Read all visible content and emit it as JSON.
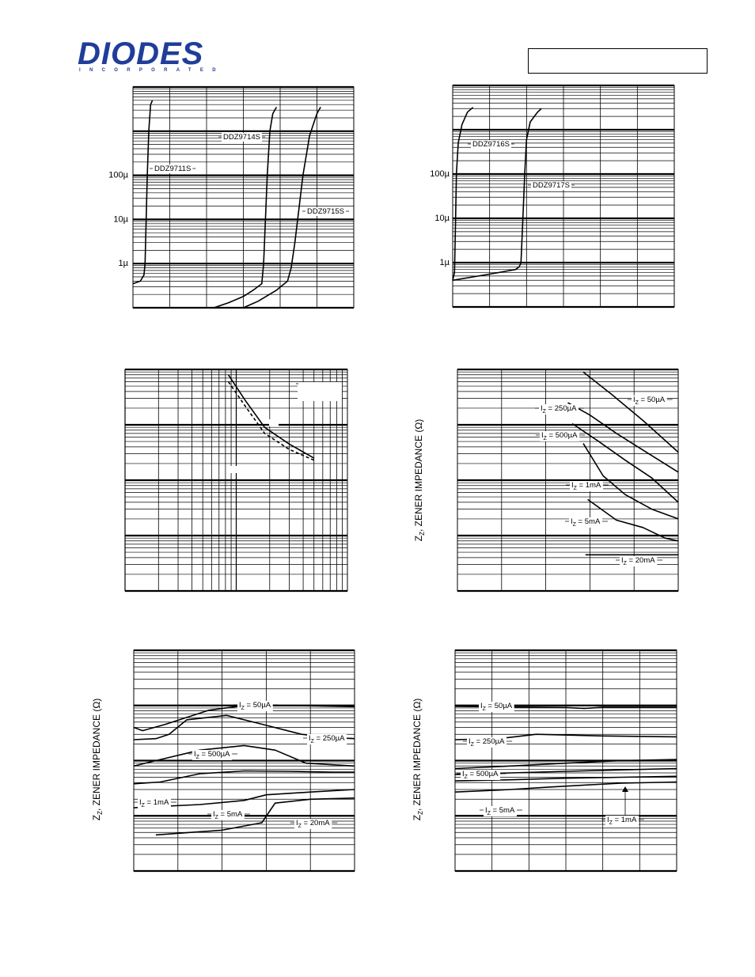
{
  "header": {
    "logo_text": "DIODES",
    "logo_subtext": "INCORPORATED",
    "brand_color": "#1f3d99",
    "part_number_box": ""
  },
  "chart_data": [
    {
      "id": "c1",
      "type": "line",
      "x_scale": "linear",
      "y_scale": "log",
      "xlim": [
        0,
        6
      ],
      "ylim": [
        1e-07,
        0.01
      ],
      "yticks": [
        {
          "value": 0.0001,
          "label": "100µ"
        },
        {
          "value": 1e-05,
          "label": "10µ"
        },
        {
          "value": 1e-06,
          "label": "1µ"
        }
      ],
      "series": [
        {
          "name": "DDZ9711S",
          "points": [
            [
              0.0,
              3.5e-07
            ],
            [
              0.2,
              4e-07
            ],
            [
              0.3,
              5.5e-07
            ],
            [
              0.33,
              1e-06
            ],
            [
              0.36,
              1e-05
            ],
            [
              0.39,
              0.0001
            ],
            [
              0.43,
              0.001
            ],
            [
              0.48,
              0.004
            ],
            [
              0.53,
              0.005
            ]
          ]
        },
        {
          "name": "DDZ9714S",
          "points": [
            [
              2.2,
              1e-07
            ],
            [
              2.6,
              1.3e-07
            ],
            [
              3.0,
              1.8e-07
            ],
            [
              3.3,
              2.6e-07
            ],
            [
              3.5,
              3.5e-07
            ],
            [
              3.55,
              1e-06
            ],
            [
              3.6,
              1e-05
            ],
            [
              3.65,
              0.0001
            ],
            [
              3.72,
              0.001
            ],
            [
              3.8,
              0.0025
            ],
            [
              3.9,
              0.0035
            ]
          ]
        },
        {
          "name": "DDZ9715S",
          "points": [
            [
              3.0,
              1e-07
            ],
            [
              3.4,
              1.4e-07
            ],
            [
              3.9,
              2.5e-07
            ],
            [
              4.2,
              4e-07
            ],
            [
              4.3,
              8e-07
            ],
            [
              4.4,
              3e-06
            ],
            [
              4.5,
              1.5e-05
            ],
            [
              4.62,
              0.0001
            ],
            [
              4.8,
              0.0008
            ],
            [
              5.0,
              0.0025
            ],
            [
              5.1,
              0.0035
            ]
          ]
        }
      ]
    },
    {
      "id": "c2",
      "type": "line",
      "x_scale": "linear",
      "y_scale": "log",
      "xlim": [
        0,
        6
      ],
      "ylim": [
        1e-07,
        0.01
      ],
      "yticks": [
        {
          "value": 0.0001,
          "label": "100µ"
        },
        {
          "value": 1e-05,
          "label": "10µ"
        },
        {
          "value": 1e-06,
          "label": "1µ"
        }
      ],
      "series": [
        {
          "name": "DDZ9716S",
          "points": [
            [
              0.0,
              4e-07
            ],
            [
              0.05,
              6e-07
            ],
            [
              0.08,
              1e-05
            ],
            [
              0.1,
              0.0001
            ],
            [
              0.15,
              0.0005
            ],
            [
              0.25,
              0.0013
            ],
            [
              0.4,
              0.0025
            ],
            [
              0.55,
              0.0032
            ]
          ]
        },
        {
          "name": "DDZ9717S",
          "points": [
            [
              0.0,
              4e-07
            ],
            [
              1.0,
              5.5e-07
            ],
            [
              1.7,
              7e-07
            ],
            [
              1.8,
              8e-07
            ],
            [
              1.85,
              1e-06
            ],
            [
              1.9,
              1e-05
            ],
            [
              1.95,
              0.0001
            ],
            [
              2.0,
              0.0006
            ],
            [
              2.1,
              0.0015
            ],
            [
              2.3,
              0.0025
            ],
            [
              2.4,
              0.003
            ]
          ]
        }
      ]
    },
    {
      "id": "c3",
      "type": "line",
      "x_scale": "log",
      "y_scale": "log",
      "xlim": [
        1,
        100
      ],
      "ylim": [
        1,
        10000
      ],
      "series": [
        {
          "name": "",
          "style": "solid",
          "points": [
            [
              8.5,
              8000
            ],
            [
              12,
              2800
            ],
            [
              18,
              900
            ],
            [
              30,
              450
            ],
            [
              50,
              250
            ]
          ]
        },
        {
          "name": "",
          "style": "dashed",
          "points": [
            [
              8.5,
              6000
            ],
            [
              12,
              2200
            ],
            [
              18,
              700
            ],
            [
              30,
              360
            ],
            [
              50,
              230
            ]
          ]
        }
      ]
    },
    {
      "id": "c4",
      "type": "line",
      "x_scale": "linear",
      "y_scale": "log",
      "xlim": [
        0,
        5
      ],
      "ylim": [
        1,
        10000
      ],
      "ylabel": "Z, ZENER IMPEDANCE (Ω)",
      "ylabel_z": "Z",
      "ylabel_sub": "Z",
      "ylabel_rest": ", ZENER IMPEDANCE (Ω)",
      "series": [
        {
          "name": "IZ = 50µA",
          "label_main": "I",
          "label_sub": "Z",
          "label_rest": " = 50µA",
          "points": [
            [
              2.85,
              9000
            ],
            [
              3.5,
              3500
            ],
            [
              4.2,
              1200
            ],
            [
              5.0,
              320
            ]
          ]
        },
        {
          "name": "IZ = 250µA",
          "label_main": "I",
          "label_sub": "Z",
          "label_rest": " = 250µA",
          "points": [
            [
              2.5,
              2500
            ],
            [
              3.0,
              1500
            ],
            [
              3.6,
              700
            ],
            [
              4.2,
              350
            ],
            [
              5.0,
              140
            ]
          ]
        },
        {
          "name": "IZ = 500µA",
          "label_main": "I",
          "label_sub": "Z",
          "label_rest": " = 500µA",
          "points": [
            [
              2.6,
              1050
            ],
            [
              3.2,
              500
            ],
            [
              3.8,
              230
            ],
            [
              4.4,
              110
            ],
            [
              5.0,
              40
            ]
          ]
        },
        {
          "name": "IZ = 1mA",
          "label_main": "I",
          "label_sub": "Z",
          "label_rest": " = 1mA",
          "points": [
            [
              2.85,
              460
            ],
            [
              3.3,
              120
            ],
            [
              3.8,
              55
            ],
            [
              4.4,
              30
            ],
            [
              5.0,
              20
            ]
          ]
        },
        {
          "name": "IZ = 5mA",
          "label_main": "I",
          "label_sub": "Z",
          "label_rest": " = 5mA",
          "points": [
            [
              2.95,
              45
            ],
            [
              3.6,
              19
            ],
            [
              4.2,
              14
            ],
            [
              4.7,
              9
            ],
            [
              5.0,
              8
            ]
          ]
        },
        {
          "name": "IZ = 20mA",
          "label_main": "I",
          "label_sub": "Z",
          "label_rest": " = 20mA",
          "points": [
            [
              2.9,
              4.5
            ],
            [
              5.0,
              4.5
            ]
          ]
        }
      ]
    },
    {
      "id": "c5",
      "type": "line",
      "x_scale": "linear",
      "y_scale": "log",
      "xlim": [
        0,
        5
      ],
      "ylim": [
        10,
        100000
      ],
      "ylabel": "Z, ZENER IMPEDANCE (Ω)",
      "ylabel_z": "Z",
      "ylabel_sub": "Z",
      "ylabel_rest": ", ZENER IMPEDANCE (Ω)",
      "series": [
        {
          "name": "IZ = 50µA",
          "label_main": "I",
          "label_sub": "Z",
          "label_rest": " = 50µA",
          "points": [
            [
              0.0,
              4000
            ],
            [
              0.2,
              3500
            ],
            [
              0.7,
              4500
            ],
            [
              1.7,
              8200
            ],
            [
              2.5,
              10000
            ],
            [
              3.5,
              10000
            ],
            [
              5.0,
              9500
            ]
          ]
        },
        {
          "name": "IZ = 250µA",
          "label_main": "I",
          "label_sub": "Z",
          "label_rest": " = 250µA",
          "points": [
            [
              0.0,
              2400
            ],
            [
              0.5,
              2500
            ],
            [
              0.8,
              3000
            ],
            [
              1.2,
              5500
            ],
            [
              2.1,
              6600
            ],
            [
              2.8,
              4800
            ],
            [
              3.8,
              3000
            ],
            [
              4.5,
              2600
            ],
            [
              5.0,
              2500
            ]
          ]
        },
        {
          "name": "IZ = 500µA",
          "label_main": "I",
          "label_sub": "Z",
          "label_rest": " = 500µA",
          "points": [
            [
              0.0,
              800
            ],
            [
              0.5,
              1000
            ],
            [
              1.5,
              1550
            ],
            [
              2.5,
              1880
            ],
            [
              3.2,
              1550
            ],
            [
              3.9,
              900
            ],
            [
              5.0,
              800
            ]
          ]
        },
        {
          "name": "IZ = 1mA",
          "label_main": "I",
          "label_sub": "Z",
          "label_rest": " = 1mA",
          "points": [
            [
              0.0,
              380
            ],
            [
              0.6,
              410
            ],
            [
              1.5,
              580
            ],
            [
              2.5,
              650
            ],
            [
              3.5,
              640
            ],
            [
              4.5,
              620
            ],
            [
              5.0,
              620
            ]
          ]
        },
        {
          "name": "IZ = 5mA",
          "label_main": "I",
          "label_sub": "Z",
          "label_rest": " = 5mA",
          "points": [
            [
              0.0,
              140
            ],
            [
              1.5,
              160
            ],
            [
              2.5,
              190
            ],
            [
              3.0,
              240
            ],
            [
              4.0,
              270
            ],
            [
              5.0,
              300
            ]
          ]
        },
        {
          "name": "IZ = 20mA",
          "label_main": "I",
          "label_sub": "Z",
          "label_rest": " = 20mA",
          "points": [
            [
              0.5,
              45
            ],
            [
              2.0,
              55
            ],
            [
              2.9,
              75
            ],
            [
              3.2,
              170
            ],
            [
              4.0,
              200
            ],
            [
              5.0,
              210
            ]
          ]
        }
      ]
    },
    {
      "id": "c6",
      "type": "line",
      "x_scale": "linear",
      "y_scale": "log",
      "xlim": [
        0,
        6
      ],
      "ylim": [
        10,
        100000
      ],
      "ylabel": "Z, ZENER IMPEDANCE (Ω)",
      "ylabel_z": "Z",
      "ylabel_sub": "Z",
      "ylabel_rest": ", ZENER IMPEDANCE (Ω)",
      "series": [
        {
          "name": "IZ = 50µA",
          "label_main": "I",
          "label_sub": "Z",
          "label_rest": " = 50µA",
          "points": [
            [
              0.0,
              9600
            ],
            [
              3.0,
              9200
            ],
            [
              3.5,
              8800
            ],
            [
              4.0,
              9300
            ],
            [
              6.0,
              9300
            ]
          ]
        },
        {
          "name": "IZ = 250µA",
          "label_main": "I",
          "label_sub": "Z",
          "label_rest": " = 250µA",
          "points": [
            [
              0.0,
              2400
            ],
            [
              1.2,
              2500
            ],
            [
              2.2,
              3000
            ],
            [
              4.0,
              2800
            ],
            [
              6.0,
              2700
            ]
          ]
        },
        {
          "name": "IZ = 500µA",
          "label_main": "I",
          "label_sub": "Z",
          "label_rest": " = 500µA",
          "points": [
            [
              0.0,
              720
            ],
            [
              1.2,
              780
            ],
            [
              3.0,
              900
            ],
            [
              4.5,
              1000
            ],
            [
              6.0,
              1050
            ]
          ]
        },
        {
          "name": "",
          "points": [
            [
              0.0,
              560
            ],
            [
              1.5,
              600
            ],
            [
              3.0,
              640
            ],
            [
              4.5,
              680
            ],
            [
              6.0,
              720
            ]
          ]
        },
        {
          "name": "IZ = 1mA",
          "label_main": "I",
          "label_sub": "Z",
          "label_rest": " = 1mA",
          "points": [
            [
              0.0,
              430
            ],
            [
              1.5,
              450
            ],
            [
              3.0,
              480
            ],
            [
              4.5,
              500
            ],
            [
              6.0,
              520
            ]
          ]
        },
        {
          "name": "IZ = 5mA",
          "label_main": "I",
          "label_sub": "Z",
          "label_rest": " = 5mA",
          "points": [
            [
              0.0,
              270
            ],
            [
              1.5,
              300
            ],
            [
              2.5,
              330
            ],
            [
              3.5,
              360
            ],
            [
              4.5,
              390
            ],
            [
              6.0,
              410
            ]
          ]
        }
      ]
    }
  ]
}
